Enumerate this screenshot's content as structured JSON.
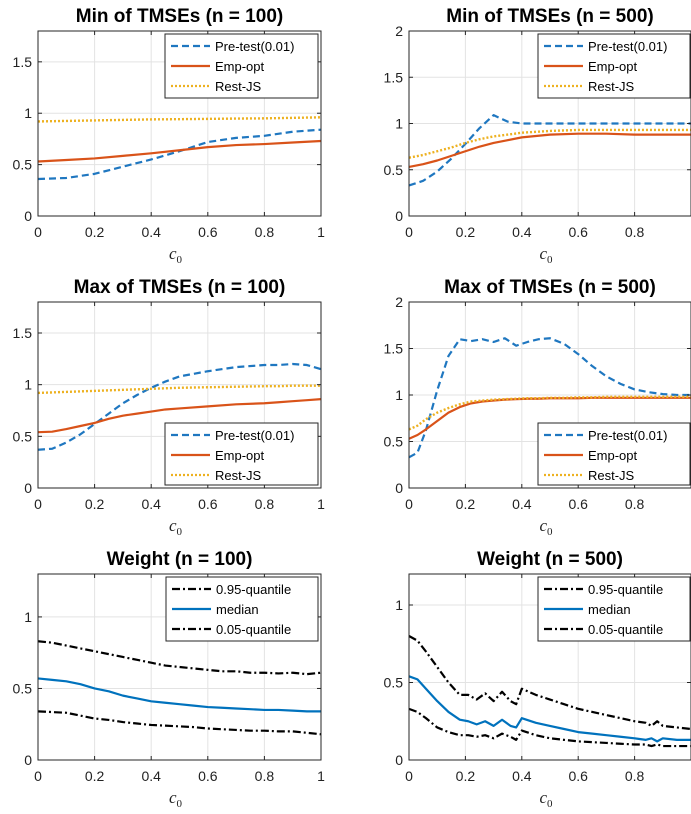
{
  "chart_data": [
    {
      "type": "line",
      "title": "Min of TMSEs (n = 100)",
      "xlabel": "c0",
      "xlim": [
        0,
        1
      ],
      "ylim": [
        0,
        1.8
      ],
      "xticks": [
        0,
        0.2,
        0.4,
        0.6,
        0.8,
        1
      ],
      "xtick_labels": [
        "0",
        "0.2",
        "0.4",
        "0.6",
        "0.8",
        "1"
      ],
      "yticks": [
        0,
        0.5,
        1,
        1.5
      ],
      "ytick_labels": [
        "0",
        "0.5",
        "1",
        "1.5"
      ],
      "grid": true,
      "legend": "top-right",
      "x": [
        0,
        0.1,
        0.2,
        0.3,
        0.4,
        0.5,
        0.6,
        0.7,
        0.8,
        0.9,
        1.0
      ],
      "series": [
        {
          "name": "Pre-test(0.01)",
          "style": "dashed",
          "color": "#1f77c0",
          "values": [
            0.36,
            0.37,
            0.41,
            0.48,
            0.55,
            0.63,
            0.72,
            0.76,
            0.78,
            0.82,
            0.84
          ]
        },
        {
          "name": "Emp-opt",
          "style": "solid",
          "color": "#d95319",
          "values": [
            0.53,
            0.545,
            0.56,
            0.585,
            0.61,
            0.64,
            0.67,
            0.69,
            0.7,
            0.715,
            0.73
          ]
        },
        {
          "name": "Rest-JS",
          "style": "dotted",
          "color": "#edb120",
          "values": [
            0.92,
            0.925,
            0.93,
            0.935,
            0.94,
            0.942,
            0.945,
            0.948,
            0.95,
            0.955,
            0.96
          ]
        }
      ]
    },
    {
      "type": "line",
      "title": "Min of TMSEs (n = 500)",
      "xlabel": "c0",
      "xlim": [
        0,
        1
      ],
      "ylim": [
        0,
        2
      ],
      "xticks": [
        0,
        0.2,
        0.4,
        0.6,
        0.8
      ],
      "xtick_labels": [
        "0",
        "0.2",
        "0.4",
        "0.6",
        "0.8"
      ],
      "yticks": [
        0,
        0.5,
        1,
        1.5,
        2
      ],
      "ytick_labels": [
        "0",
        "0.5",
        "1",
        "1.5",
        "2"
      ],
      "grid": true,
      "legend": "top-right",
      "x": [
        0,
        0.05,
        0.1,
        0.15,
        0.2,
        0.25,
        0.3,
        0.35,
        0.4,
        0.5,
        0.6,
        0.7,
        0.8,
        0.9,
        1.0
      ],
      "series": [
        {
          "name": "Pre-test(0.01)",
          "style": "dashed",
          "color": "#1f77c0",
          "values": [
            0.33,
            0.38,
            0.48,
            0.62,
            0.78,
            0.95,
            1.09,
            1.02,
            1.0,
            1.0,
            1.0,
            1.0,
            1.0,
            1.0,
            1.0
          ]
        },
        {
          "name": "Emp-opt",
          "style": "solid",
          "color": "#d95319",
          "values": [
            0.53,
            0.56,
            0.6,
            0.65,
            0.7,
            0.75,
            0.79,
            0.82,
            0.85,
            0.88,
            0.89,
            0.89,
            0.88,
            0.88,
            0.88
          ]
        },
        {
          "name": "Rest-JS",
          "style": "dotted",
          "color": "#edb120",
          "values": [
            0.63,
            0.66,
            0.7,
            0.74,
            0.79,
            0.83,
            0.86,
            0.88,
            0.9,
            0.92,
            0.93,
            0.93,
            0.93,
            0.93,
            0.93
          ]
        }
      ]
    },
    {
      "type": "line",
      "title": "Max of TMSEs (n = 100)",
      "xlabel": "c0",
      "xlim": [
        0,
        1
      ],
      "ylim": [
        0,
        1.8
      ],
      "xticks": [
        0,
        0.2,
        0.4,
        0.6,
        0.8,
        1
      ],
      "xtick_labels": [
        "0",
        "0.2",
        "0.4",
        "0.6",
        "0.8",
        "1"
      ],
      "yticks": [
        0,
        0.5,
        1,
        1.5
      ],
      "ytick_labels": [
        "0",
        "0.5",
        "1",
        "1.5"
      ],
      "grid": true,
      "legend": "bottom-right",
      "x": [
        0,
        0.05,
        0.1,
        0.15,
        0.2,
        0.25,
        0.3,
        0.35,
        0.4,
        0.45,
        0.5,
        0.6,
        0.7,
        0.8,
        0.85,
        0.9,
        0.95,
        1.0
      ],
      "series": [
        {
          "name": "Pre-test(0.01)",
          "style": "dashed",
          "color": "#1f77c0",
          "values": [
            0.37,
            0.38,
            0.44,
            0.52,
            0.62,
            0.72,
            0.82,
            0.9,
            0.97,
            1.03,
            1.08,
            1.13,
            1.17,
            1.19,
            1.19,
            1.2,
            1.19,
            1.15
          ]
        },
        {
          "name": "Emp-opt",
          "style": "solid",
          "color": "#d95319",
          "values": [
            0.54,
            0.545,
            0.57,
            0.6,
            0.63,
            0.67,
            0.7,
            0.72,
            0.74,
            0.76,
            0.77,
            0.79,
            0.81,
            0.82,
            0.83,
            0.84,
            0.85,
            0.86
          ]
        },
        {
          "name": "Rest-JS",
          "style": "dotted",
          "color": "#edb120",
          "values": [
            0.92,
            0.925,
            0.93,
            0.935,
            0.94,
            0.945,
            0.95,
            0.955,
            0.96,
            0.965,
            0.97,
            0.975,
            0.98,
            0.985,
            0.985,
            0.99,
            0.99,
            0.99
          ]
        }
      ]
    },
    {
      "type": "line",
      "title": "Max of TMSEs (n = 500)",
      "xlabel": "c0",
      "xlim": [
        0,
        1
      ],
      "ylim": [
        0,
        2
      ],
      "xticks": [
        0,
        0.2,
        0.4,
        0.6,
        0.8
      ],
      "xtick_labels": [
        "0",
        "0.2",
        "0.4",
        "0.6",
        "0.8"
      ],
      "yticks": [
        0,
        0.5,
        1,
        1.5,
        2
      ],
      "ytick_labels": [
        "0",
        "0.5",
        "1",
        "1.5",
        "2"
      ],
      "grid": true,
      "legend": "bottom-right",
      "x": [
        0,
        0.03,
        0.06,
        0.1,
        0.14,
        0.18,
        0.22,
        0.26,
        0.3,
        0.34,
        0.38,
        0.42,
        0.46,
        0.5,
        0.55,
        0.6,
        0.65,
        0.7,
        0.75,
        0.8,
        0.85,
        0.9,
        0.95,
        1.0
      ],
      "series": [
        {
          "name": "Pre-test(0.01)",
          "style": "dashed",
          "color": "#1f77c0",
          "values": [
            0.33,
            0.38,
            0.62,
            1.05,
            1.42,
            1.6,
            1.58,
            1.6,
            1.57,
            1.61,
            1.53,
            1.57,
            1.6,
            1.61,
            1.55,
            1.44,
            1.31,
            1.2,
            1.12,
            1.06,
            1.03,
            1.01,
            1.0,
            1.0
          ]
        },
        {
          "name": "Emp-opt",
          "style": "solid",
          "color": "#d95319",
          "values": [
            0.53,
            0.57,
            0.63,
            0.72,
            0.81,
            0.87,
            0.91,
            0.93,
            0.94,
            0.95,
            0.955,
            0.96,
            0.96,
            0.965,
            0.965,
            0.965,
            0.97,
            0.97,
            0.97,
            0.97,
            0.97,
            0.97,
            0.97,
            0.97
          ]
        },
        {
          "name": "Rest-JS",
          "style": "dotted",
          "color": "#edb120",
          "values": [
            0.63,
            0.67,
            0.74,
            0.81,
            0.86,
            0.9,
            0.93,
            0.94,
            0.95,
            0.955,
            0.96,
            0.965,
            0.965,
            0.97,
            0.97,
            0.975,
            0.975,
            0.98,
            0.98,
            0.98,
            0.98,
            0.98,
            0.98,
            0.98
          ]
        }
      ]
    },
    {
      "type": "line",
      "title": "Weight (n = 100)",
      "xlabel": "c0",
      "xlim": [
        0,
        1
      ],
      "ylim": [
        0,
        1.3
      ],
      "xticks": [
        0,
        0.2,
        0.4,
        0.6,
        0.8,
        1
      ],
      "xtick_labels": [
        "0",
        "0.2",
        "0.4",
        "0.6",
        "0.8",
        "1"
      ],
      "yticks": [
        0,
        0.5,
        1
      ],
      "ytick_labels": [
        "0",
        "0.5",
        "1"
      ],
      "grid": true,
      "legend": "top-right",
      "x": [
        0,
        0.05,
        0.1,
        0.15,
        0.2,
        0.25,
        0.3,
        0.35,
        0.4,
        0.45,
        0.5,
        0.55,
        0.6,
        0.65,
        0.7,
        0.75,
        0.8,
        0.85,
        0.9,
        0.95,
        1.0
      ],
      "series": [
        {
          "name": "0.95-quantile",
          "style": "dashdot",
          "color": "#000000",
          "values": [
            0.83,
            0.82,
            0.8,
            0.78,
            0.76,
            0.74,
            0.72,
            0.7,
            0.68,
            0.66,
            0.65,
            0.64,
            0.63,
            0.62,
            0.62,
            0.61,
            0.61,
            0.605,
            0.61,
            0.6,
            0.61
          ]
        },
        {
          "name": "median",
          "style": "solid",
          "color": "#0072bd",
          "values": [
            0.57,
            0.56,
            0.55,
            0.53,
            0.5,
            0.48,
            0.45,
            0.43,
            0.41,
            0.4,
            0.39,
            0.38,
            0.37,
            0.365,
            0.36,
            0.355,
            0.35,
            0.35,
            0.345,
            0.34,
            0.34
          ]
        },
        {
          "name": "0.05-quantile",
          "style": "dashdot",
          "color": "#000000",
          "values": [
            0.34,
            0.335,
            0.33,
            0.31,
            0.29,
            0.28,
            0.265,
            0.255,
            0.245,
            0.24,
            0.235,
            0.23,
            0.22,
            0.215,
            0.21,
            0.205,
            0.205,
            0.2,
            0.2,
            0.19,
            0.18
          ]
        }
      ]
    },
    {
      "type": "line",
      "title": "Weight (n = 500)",
      "xlabel": "c0",
      "xlim": [
        0,
        1
      ],
      "ylim": [
        0,
        1.2
      ],
      "xticks": [
        0,
        0.2,
        0.4,
        0.6,
        0.8
      ],
      "xtick_labels": [
        "0",
        "0.2",
        "0.4",
        "0.6",
        "0.8"
      ],
      "yticks": [
        0,
        0.5,
        1
      ],
      "ytick_labels": [
        "0",
        "0.5",
        "1"
      ],
      "grid": true,
      "legend": "top-right",
      "x": [
        0,
        0.03,
        0.06,
        0.1,
        0.14,
        0.18,
        0.21,
        0.24,
        0.27,
        0.3,
        0.33,
        0.36,
        0.38,
        0.4,
        0.45,
        0.5,
        0.55,
        0.6,
        0.65,
        0.7,
        0.75,
        0.8,
        0.84,
        0.86,
        0.88,
        0.9,
        0.95,
        1.0
      ],
      "series": [
        {
          "name": "0.95-quantile",
          "style": "dashdot",
          "color": "#000000",
          "values": [
            0.8,
            0.77,
            0.7,
            0.6,
            0.5,
            0.42,
            0.42,
            0.39,
            0.43,
            0.38,
            0.44,
            0.38,
            0.36,
            0.46,
            0.42,
            0.39,
            0.36,
            0.33,
            0.31,
            0.29,
            0.27,
            0.25,
            0.24,
            0.22,
            0.25,
            0.22,
            0.21,
            0.2
          ]
        },
        {
          "name": "median",
          "style": "solid",
          "color": "#0072bd",
          "values": [
            0.54,
            0.52,
            0.46,
            0.38,
            0.31,
            0.26,
            0.25,
            0.23,
            0.25,
            0.22,
            0.26,
            0.22,
            0.21,
            0.27,
            0.24,
            0.22,
            0.2,
            0.18,
            0.17,
            0.16,
            0.15,
            0.14,
            0.13,
            0.14,
            0.12,
            0.14,
            0.13,
            0.13
          ]
        },
        {
          "name": "0.05-quantile",
          "style": "dashdot",
          "color": "#000000",
          "values": [
            0.33,
            0.31,
            0.27,
            0.21,
            0.18,
            0.16,
            0.16,
            0.15,
            0.16,
            0.14,
            0.17,
            0.15,
            0.13,
            0.19,
            0.16,
            0.14,
            0.13,
            0.12,
            0.115,
            0.11,
            0.105,
            0.1,
            0.1,
            0.09,
            0.1,
            0.09,
            0.09,
            0.09
          ]
        }
      ]
    }
  ]
}
